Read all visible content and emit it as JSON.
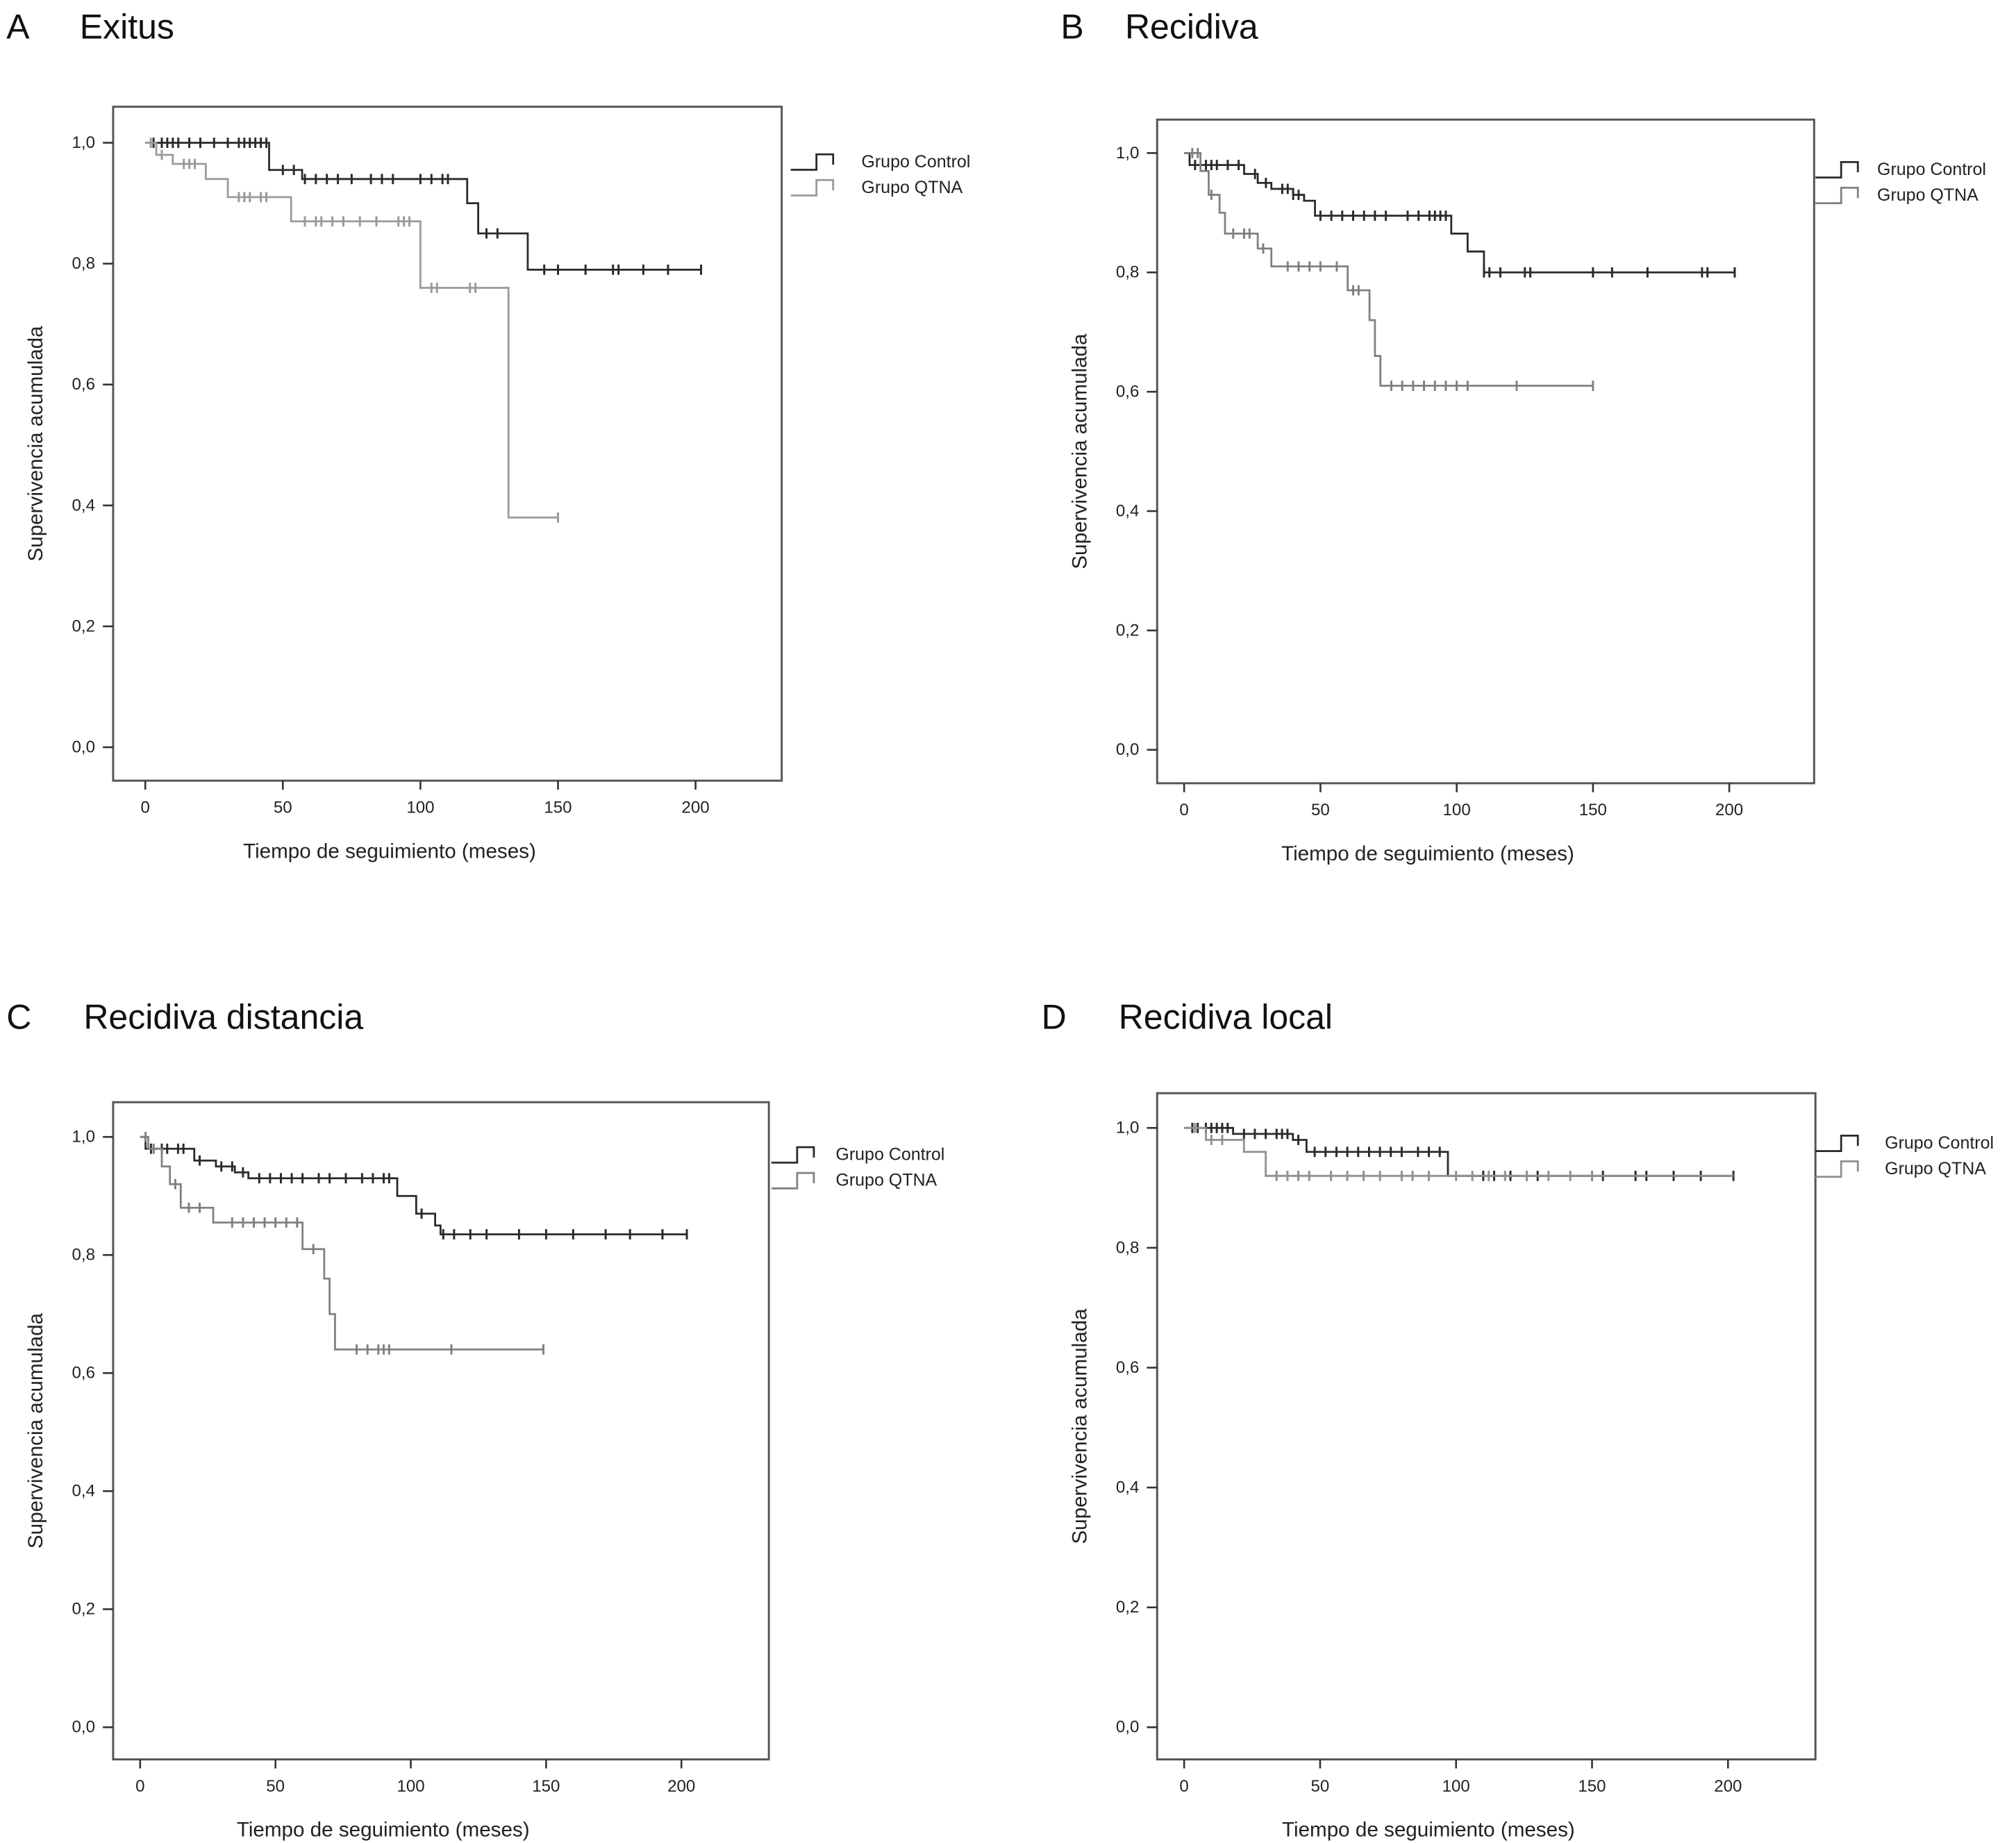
{
  "chart_data": [
    {
      "type": "line",
      "panel_letter": "A",
      "title": "Exitus",
      "xlabel": "Tiempo de seguimiento (meses)",
      "ylabel": "Supervivencia acumulada",
      "xlim": [
        -12,
        233
      ],
      "ylim": [
        -0.05,
        1.04
      ],
      "xticks": [
        "0",
        "50",
        "100",
        "150",
        "200"
      ],
      "yticks": [
        "0,0",
        "0,2",
        "0,4",
        "0,6",
        "0,8",
        "1,0"
      ],
      "legend": "right",
      "series": [
        {
          "name": "Grupo Control",
          "color": "#2a2a2a",
          "steps": [
            [
              0,
              1.0
            ],
            [
              45,
              0.955
            ],
            [
              57,
              0.94
            ],
            [
              117,
              0.9
            ],
            [
              121,
              0.85
            ],
            [
              139,
              0.79
            ]
          ],
          "end": 202,
          "censored": [
            3,
            6,
            8,
            10,
            12,
            16,
            20,
            25,
            30,
            34,
            36,
            38,
            40,
            42,
            44,
            50,
            54,
            58,
            62,
            66,
            70,
            75,
            82,
            86,
            90,
            100,
            104,
            108,
            110,
            124,
            128,
            145,
            150,
            160,
            170,
            172,
            181,
            190,
            202
          ]
        },
        {
          "name": "Grupo QTNA",
          "color": "#9a9a9a",
          "steps": [
            [
              0,
              1.0
            ],
            [
              4,
              0.98
            ],
            [
              10,
              0.965
            ],
            [
              22,
              0.94
            ],
            [
              30,
              0.91
            ],
            [
              53,
              0.87
            ],
            [
              100,
              0.76
            ],
            [
              132,
              0.38
            ]
          ],
          "end": 150,
          "censored": [
            2,
            6,
            14,
            16,
            18,
            34,
            36,
            38,
            42,
            44,
            58,
            62,
            64,
            68,
            72,
            78,
            84,
            92,
            94,
            96,
            104,
            106,
            118,
            120,
            150
          ]
        }
      ]
    },
    {
      "type": "line",
      "panel_letter": "B",
      "title": "Recidiva",
      "xlabel": "Tiempo de seguimiento (meses)",
      "ylabel": "Supervivencia acumulada",
      "xlim": [
        -10,
        231
      ],
      "ylim": [
        -0.06,
        1.06
      ],
      "xticks": [
        "0",
        "50",
        "100",
        "150",
        "200"
      ],
      "yticks": [
        "0,0",
        "0,2",
        "0,4",
        "0,6",
        "0,8",
        "1,0"
      ],
      "legend": "right",
      "series": [
        {
          "name": "Grupo Control",
          "color": "#2a2a2a",
          "steps": [
            [
              0,
              1.0
            ],
            [
              2,
              0.98
            ],
            [
              22,
              0.965
            ],
            [
              27,
              0.95
            ],
            [
              32,
              0.94
            ],
            [
              40,
              0.93
            ],
            [
              44,
              0.92
            ],
            [
              48,
              0.895
            ],
            [
              98,
              0.865
            ],
            [
              104,
              0.835
            ],
            [
              110,
              0.8
            ]
          ],
          "end": 202,
          "censored": [
            4,
            8,
            10,
            12,
            16,
            20,
            26,
            30,
            36,
            38,
            40,
            42,
            50,
            54,
            58,
            62,
            66,
            70,
            74,
            82,
            86,
            90,
            92,
            94,
            96,
            110,
            112,
            116,
            125,
            127,
            150,
            157,
            170,
            190,
            192,
            202
          ]
        },
        {
          "name": "Grupo QTNA",
          "color": "#808080",
          "steps": [
            [
              0,
              1.0
            ],
            [
              6,
              0.97
            ],
            [
              9,
              0.93
            ],
            [
              13,
              0.9
            ],
            [
              15,
              0.865
            ],
            [
              27,
              0.84
            ],
            [
              32,
              0.81
            ],
            [
              60,
              0.77
            ],
            [
              68,
              0.72
            ],
            [
              70,
              0.66
            ],
            [
              72,
              0.61
            ]
          ],
          "end": 150,
          "censored": [
            3,
            5,
            10,
            18,
            22,
            24,
            29,
            38,
            42,
            46,
            50,
            56,
            62,
            64,
            76,
            80,
            84,
            88,
            92,
            96,
            100,
            104,
            122,
            150
          ]
        }
      ]
    },
    {
      "type": "line",
      "panel_letter": "C",
      "title": "Recidiva distancia",
      "xlabel": "Tiempo de seguimiento (meses)",
      "ylabel": "Supervivencia acumulada",
      "xlim": [
        -10,
        232
      ],
      "ylim": [
        -0.06,
        1.06
      ],
      "xticks": [
        "0",
        "50",
        "100",
        "150",
        "200"
      ],
      "yticks": [
        "0,0",
        "0,2",
        "0,4",
        "0,6",
        "0,8",
        "1,0"
      ],
      "legend": "right",
      "series": [
        {
          "name": "Grupo Control",
          "color": "#2a2a2a",
          "steps": [
            [
              0,
              1.0
            ],
            [
              2,
              0.98
            ],
            [
              20,
              0.96
            ],
            [
              28,
              0.95
            ],
            [
              35,
              0.94
            ],
            [
              40,
              0.93
            ],
            [
              95,
              0.9
            ],
            [
              102,
              0.87
            ],
            [
              109,
              0.85
            ],
            [
              111,
              0.835
            ]
          ],
          "end": 202,
          "censored": [
            4,
            8,
            10,
            14,
            16,
            22,
            30,
            34,
            38,
            44,
            48,
            52,
            56,
            60,
            66,
            70,
            76,
            82,
            86,
            90,
            92,
            104,
            112,
            116,
            122,
            128,
            140,
            150,
            160,
            172,
            181,
            193,
            202
          ]
        },
        {
          "name": "Grupo QTNA",
          "color": "#808080",
          "steps": [
            [
              0,
              1.0
            ],
            [
              3,
              0.98
            ],
            [
              8,
              0.95
            ],
            [
              11,
              0.92
            ],
            [
              15,
              0.88
            ],
            [
              27,
              0.855
            ],
            [
              60,
              0.81
            ],
            [
              68,
              0.76
            ],
            [
              70,
              0.7
            ],
            [
              72,
              0.64
            ]
          ],
          "end": 149,
          "censored": [
            2,
            5,
            13,
            18,
            22,
            34,
            38,
            42,
            46,
            50,
            54,
            58,
            64,
            80,
            84,
            88,
            90,
            92,
            115,
            149
          ]
        }
      ]
    },
    {
      "type": "line",
      "panel_letter": "D",
      "title": "Recidiva local",
      "xlabel": "Tiempo de seguimiento (meses)",
      "ylabel": "Supervivencia acumulada",
      "xlim": [
        -10,
        232
      ],
      "ylim": [
        -0.06,
        1.06
      ],
      "xticks": [
        "0",
        "50",
        "100",
        "150",
        "200"
      ],
      "yticks": [
        "0,0",
        "0,2",
        "0,4",
        "0,6",
        "0,8",
        "1,0"
      ],
      "legend": "right",
      "series": [
        {
          "name": "Grupo Control",
          "color": "#2a2a2a",
          "steps": [
            [
              0,
              1.0
            ],
            [
              18,
              0.99
            ],
            [
              40,
              0.98
            ],
            [
              45,
              0.96
            ],
            [
              97,
              0.92
            ]
          ],
          "end": 202,
          "censored": [
            3,
            5,
            8,
            10,
            12,
            14,
            16,
            22,
            26,
            30,
            34,
            36,
            38,
            42,
            48,
            52,
            56,
            60,
            64,
            68,
            72,
            76,
            80,
            86,
            90,
            94,
            110,
            114,
            120,
            126,
            130,
            150,
            154,
            166,
            170,
            180,
            190,
            202
          ]
        },
        {
          "name": "Grupo QTNA",
          "color": "#909090",
          "steps": [
            [
              0,
              1.0
            ],
            [
              8,
              0.98
            ],
            [
              22,
              0.96
            ],
            [
              30,
              0.92
            ]
          ],
          "end": 202,
          "censored": [
            4,
            10,
            14,
            34,
            38,
            42,
            46,
            54,
            60,
            66,
            72,
            80,
            84,
            90,
            100,
            106,
            112,
            118,
            126,
            134,
            142,
            150
          ]
        }
      ]
    }
  ]
}
